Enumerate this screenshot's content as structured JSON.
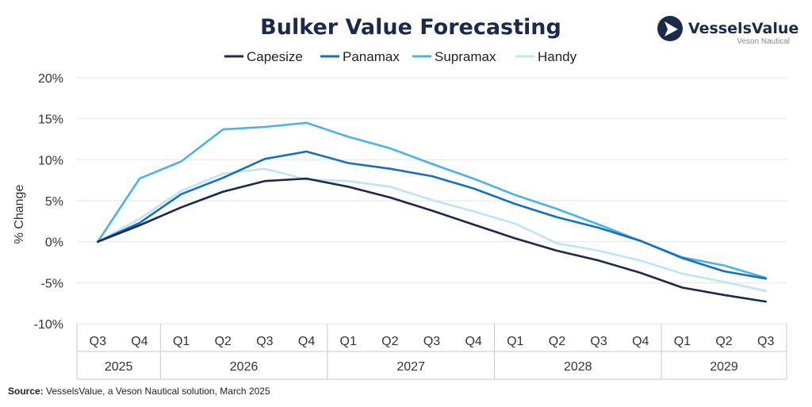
{
  "chart_data": {
    "type": "line",
    "title": "Bulker Value Forecasting",
    "xlabel": "",
    "ylabel": "% Change",
    "ylim": [
      -10,
      20
    ],
    "yticks": [
      20,
      15,
      10,
      5,
      0,
      -5,
      -10
    ],
    "ytick_labels": [
      "20%",
      "15%",
      "10%",
      "5%",
      "0%",
      "-5%",
      "-10%"
    ],
    "categories": [
      "Q3",
      "Q4",
      "Q1",
      "Q2",
      "Q3",
      "Q4",
      "Q1",
      "Q2",
      "Q3",
      "Q4",
      "Q1",
      "Q2",
      "Q3",
      "Q4",
      "Q1",
      "Q2",
      "Q3"
    ],
    "year_groups": [
      {
        "label": "2025",
        "count": 2
      },
      {
        "label": "2026",
        "count": 4
      },
      {
        "label": "2027",
        "count": 4
      },
      {
        "label": "2028",
        "count": 4
      },
      {
        "label": "2029",
        "count": 3
      }
    ],
    "legend_position": "top-center",
    "grid": true,
    "series": [
      {
        "name": "Capesize",
        "color": "#1b2a4a",
        "values": [
          0,
          2.0,
          4.2,
          6.1,
          7.4,
          7.7,
          6.7,
          5.4,
          3.8,
          2.1,
          0.4,
          -1.1,
          -2.3,
          -3.8,
          -5.6,
          -6.5,
          -7.3
        ]
      },
      {
        "name": "Panamax",
        "color": "#1670c0",
        "values": [
          0,
          2.3,
          5.8,
          7.8,
          10.1,
          11.0,
          9.6,
          8.9,
          8.0,
          6.5,
          4.6,
          3.0,
          1.7,
          0.1,
          -2.0,
          -3.6,
          -4.5
        ]
      },
      {
        "name": "Supramax",
        "color": "#48b3e6",
        "values": [
          0,
          7.7,
          9.8,
          13.7,
          14.0,
          14.5,
          12.8,
          11.4,
          9.5,
          7.7,
          5.7,
          4.0,
          2.1,
          0.1,
          -1.9,
          -2.9,
          -4.4
        ]
      },
      {
        "name": "Handy",
        "color": "#bfe4f7",
        "values": [
          0,
          2.8,
          6.2,
          8.3,
          8.9,
          7.6,
          7.4,
          6.7,
          5.1,
          3.7,
          2.2,
          -0.2,
          -1.1,
          -2.3,
          -3.9,
          -4.9,
          -6.0
        ]
      }
    ]
  },
  "logo": {
    "name": "VesselsValue",
    "tagline": "Veson Nautical"
  },
  "source": {
    "label": "Source:",
    "text": " VesselsValue, a Veson Nautical solution, March 2025"
  },
  "colors": {
    "title": "#1b2a4a",
    "text": "#2a2a2a",
    "grid": "#e6e6e6",
    "axis": "#c8c8c8"
  }
}
